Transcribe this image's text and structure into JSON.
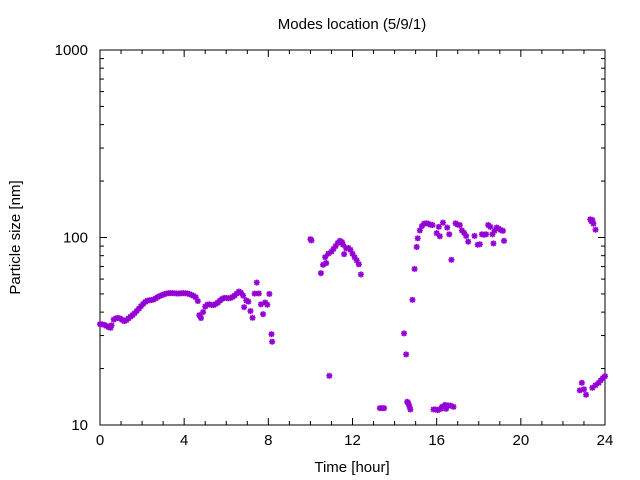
{
  "chart_data": {
    "type": "scatter",
    "title": "Modes location (5/9/1)",
    "xlabel": "Time [hour]",
    "ylabel": "Particle size [nm]",
    "xlim": [
      0,
      24
    ],
    "ylim": [
      10,
      1000
    ],
    "yscale": "log",
    "xticks": [
      0,
      4,
      8,
      12,
      16,
      20,
      24
    ],
    "xtick_labels": [
      "0",
      "4",
      "8",
      "12",
      "16",
      "20",
      "24"
    ],
    "yticks": [
      10,
      100,
      1000
    ],
    "ytick_labels": [
      "10",
      "100",
      "1000"
    ],
    "grid": false,
    "marker_color": "#9400d3",
    "marker": "asterisk",
    "points": [
      [
        0.0,
        34.5
      ],
      [
        0.1,
        34.4
      ],
      [
        0.2,
        34.2
      ],
      [
        0.3,
        33.8
      ],
      [
        0.4,
        33.3
      ],
      [
        0.5,
        33.0
      ],
      [
        0.55,
        34.0
      ],
      [
        0.65,
        36.5
      ],
      [
        0.75,
        37.0
      ],
      [
        0.85,
        37.3
      ],
      [
        0.95,
        37.0
      ],
      [
        1.05,
        36.4
      ],
      [
        1.15,
        35.8
      ],
      [
        1.25,
        36.2
      ],
      [
        1.35,
        37.0
      ],
      [
        1.45,
        37.8
      ],
      [
        1.55,
        38.6
      ],
      [
        1.65,
        39.5
      ],
      [
        1.75,
        40.6
      ],
      [
        1.85,
        41.8
      ],
      [
        1.95,
        43.0
      ],
      [
        2.05,
        44.2
      ],
      [
        2.15,
        45.3
      ],
      [
        2.25,
        46.0
      ],
      [
        2.35,
        46.3
      ],
      [
        2.45,
        46.4
      ],
      [
        2.55,
        46.7
      ],
      [
        2.65,
        47.4
      ],
      [
        2.75,
        48.2
      ],
      [
        2.85,
        48.8
      ],
      [
        2.95,
        49.3
      ],
      [
        3.05,
        49.8
      ],
      [
        3.15,
        50.2
      ],
      [
        3.25,
        50.5
      ],
      [
        3.35,
        50.5
      ],
      [
        3.45,
        50.5
      ],
      [
        3.55,
        50.4
      ],
      [
        3.65,
        50.3
      ],
      [
        3.75,
        50.3
      ],
      [
        3.85,
        50.4
      ],
      [
        3.95,
        50.5
      ],
      [
        4.05,
        50.4
      ],
      [
        4.15,
        50.3
      ],
      [
        4.25,
        49.9
      ],
      [
        4.35,
        49.4
      ],
      [
        4.45,
        48.8
      ],
      [
        4.55,
        48.0
      ],
      [
        4.65,
        45.8
      ],
      [
        4.72,
        38.5
      ],
      [
        4.8,
        37.2
      ],
      [
        4.9,
        40.0
      ],
      [
        5.0,
        42.8
      ],
      [
        5.1,
        43.8
      ],
      [
        5.2,
        44.0
      ],
      [
        5.3,
        43.7
      ],
      [
        5.4,
        43.6
      ],
      [
        5.5,
        44.2
      ],
      [
        5.6,
        45.0
      ],
      [
        5.7,
        46.0
      ],
      [
        5.8,
        47.0
      ],
      [
        5.9,
        47.6
      ],
      [
        6.0,
        47.6
      ],
      [
        6.1,
        47.4
      ],
      [
        6.2,
        47.6
      ],
      [
        6.3,
        48.2
      ],
      [
        6.4,
        49.0
      ],
      [
        6.5,
        50.2
      ],
      [
        6.6,
        51.5
      ],
      [
        6.7,
        50.8
      ],
      [
        6.8,
        49.0
      ],
      [
        6.85,
        42.5
      ],
      [
        6.95,
        46.2
      ],
      [
        7.05,
        45.5
      ],
      [
        7.15,
        40.5
      ],
      [
        7.25,
        37.3
      ],
      [
        7.35,
        50.2
      ],
      [
        7.45,
        57.5
      ],
      [
        7.55,
        50.3
      ],
      [
        7.65,
        44.0
      ],
      [
        7.75,
        39.0
      ],
      [
        7.85,
        45.0
      ],
      [
        7.95,
        43.8
      ],
      [
        8.05,
        50.0
      ],
      [
        8.15,
        30.5
      ],
      [
        8.18,
        27.8
      ],
      [
        10.0,
        98.0
      ],
      [
        10.05,
        96.5
      ],
      [
        10.5,
        64.5
      ],
      [
        10.6,
        71.5
      ],
      [
        10.7,
        78.5
      ],
      [
        10.75,
        73.0
      ],
      [
        10.85,
        82.0
      ],
      [
        10.9,
        18.3
      ],
      [
        11.0,
        84.0
      ],
      [
        11.1,
        87.0
      ],
      [
        11.2,
        90.0
      ],
      [
        11.3,
        93.5
      ],
      [
        11.4,
        96.0
      ],
      [
        11.5,
        94.5
      ],
      [
        11.55,
        91.5
      ],
      [
        11.6,
        81.5
      ],
      [
        11.7,
        87.5
      ],
      [
        11.8,
        88.0
      ],
      [
        11.9,
        86.0
      ],
      [
        12.0,
        82.0
      ],
      [
        12.1,
        78.5
      ],
      [
        12.2,
        75.5
      ],
      [
        12.3,
        72.0
      ],
      [
        12.4,
        63.5
      ],
      [
        13.3,
        12.3
      ],
      [
        13.4,
        12.3
      ],
      [
        13.5,
        12.3
      ],
      [
        14.45,
        30.8
      ],
      [
        14.55,
        23.8
      ],
      [
        14.6,
        13.3
      ],
      [
        14.65,
        13.1
      ],
      [
        14.7,
        12.6
      ],
      [
        14.75,
        12.1
      ],
      [
        14.85,
        46.5
      ],
      [
        14.95,
        68.0
      ],
      [
        15.05,
        89.0
      ],
      [
        15.1,
        99.0
      ],
      [
        15.2,
        109.0
      ],
      [
        15.3,
        115.0
      ],
      [
        15.4,
        118.5
      ],
      [
        15.5,
        119.0
      ],
      [
        15.6,
        118.5
      ],
      [
        15.7,
        117.0
      ],
      [
        15.8,
        116.5
      ],
      [
        15.85,
        12.1
      ],
      [
        15.95,
        12.1
      ],
      [
        16.0,
        105.5
      ],
      [
        16.05,
        12.0
      ],
      [
        16.1,
        114.0
      ],
      [
        16.15,
        101.5
      ],
      [
        16.2,
        12.2
      ],
      [
        16.25,
        12.5
      ],
      [
        16.3,
        120.0
      ],
      [
        16.4,
        12.8
      ],
      [
        16.45,
        12.2
      ],
      [
        16.5,
        113.0
      ],
      [
        16.55,
        12.7
      ],
      [
        16.6,
        104.0
      ],
      [
        16.65,
        12.7
      ],
      [
        16.7,
        76.0
      ],
      [
        16.8,
        12.5
      ],
      [
        16.9,
        119.0
      ],
      [
        17.0,
        117.0
      ],
      [
        17.1,
        116.5
      ],
      [
        17.2,
        109.0
      ],
      [
        17.3,
        106.0
      ],
      [
        17.4,
        102.0
      ],
      [
        17.5,
        95.0
      ],
      [
        17.8,
        102.0
      ],
      [
        17.95,
        91.5
      ],
      [
        18.05,
        92.0
      ],
      [
        18.15,
        104.0
      ],
      [
        18.25,
        103.5
      ],
      [
        18.35,
        104.0
      ],
      [
        18.45,
        116.5
      ],
      [
        18.55,
        114.0
      ],
      [
        18.65,
        104.0
      ],
      [
        18.7,
        93.0
      ],
      [
        18.75,
        108.5
      ],
      [
        18.85,
        113.0
      ],
      [
        18.95,
        111.5
      ],
      [
        19.05,
        109.5
      ],
      [
        19.15,
        108.5
      ],
      [
        19.2,
        96.0
      ],
      [
        22.8,
        15.3
      ],
      [
        22.9,
        16.8
      ],
      [
        23.0,
        15.5
      ],
      [
        23.1,
        14.5
      ],
      [
        23.3,
        125.0
      ],
      [
        23.35,
        122.0
      ],
      [
        23.4,
        124.0
      ],
      [
        23.45,
        118.5
      ],
      [
        23.55,
        110.0
      ],
      [
        23.4,
        15.8
      ],
      [
        23.55,
        16.3
      ],
      [
        23.7,
        16.8
      ],
      [
        23.8,
        17.3
      ],
      [
        23.9,
        17.8
      ],
      [
        24.0,
        18.2
      ]
    ]
  }
}
